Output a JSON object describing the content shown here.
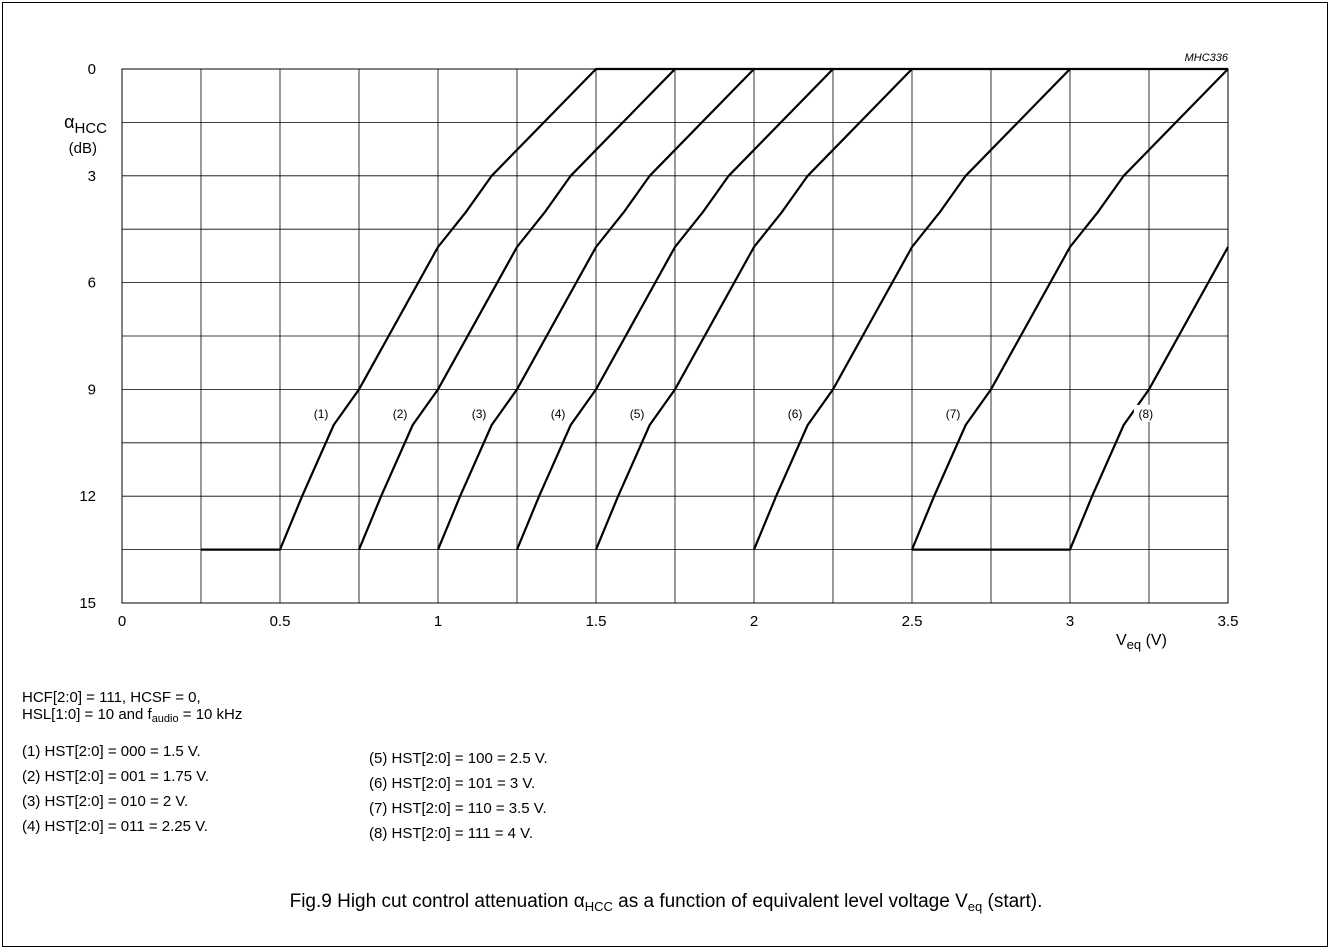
{
  "chart_data": {
    "type": "line",
    "figure_code": "MHC336",
    "ylabel_symbol": "α",
    "ylabel_subscript": "HCC",
    "ylabel_unit": "(dB)",
    "xlabel_main": "V",
    "xlabel_subscript": "eq",
    "xlabel_unit": "(V)",
    "xlim": [
      0,
      3.5
    ],
    "ylim": [
      0,
      15
    ],
    "y_inverted": true,
    "grid": true,
    "x_ticks": [
      0,
      0.5,
      1,
      1.5,
      2,
      2.5,
      3,
      3.5
    ],
    "x_tick_labels": [
      "0",
      "0.5",
      "1",
      "1.5",
      "2",
      "2.5",
      "3",
      "3.5"
    ],
    "y_ticks": [
      0,
      3,
      6,
      9,
      12,
      15
    ],
    "y_tick_labels": [
      "0",
      "3",
      "6",
      "9",
      "12",
      "15"
    ],
    "series": [
      {
        "name": "(1)",
        "label_at": [
          0.63,
          9.8
        ],
        "x": [
          0.25,
          0.5,
          0.57,
          0.67,
          0.75,
          1.0,
          1.09,
          1.17,
          1.5,
          1.75,
          3.5
        ],
        "y": [
          13.5,
          13.5,
          12.0,
          10.0,
          9.0,
          5.0,
          4.0,
          3.0,
          0.0,
          0.0,
          0.0
        ]
      },
      {
        "name": "(2)",
        "label_at": [
          0.88,
          9.8
        ],
        "x": [
          0.75,
          0.82,
          0.92,
          1.0,
          1.25,
          1.34,
          1.42,
          1.75
        ],
        "y": [
          13.5,
          12.0,
          10.0,
          9.0,
          5.0,
          4.0,
          3.0,
          0.0
        ]
      },
      {
        "name": "(3)",
        "label_at": [
          1.13,
          9.8
        ],
        "x": [
          1.0,
          1.07,
          1.17,
          1.25,
          1.5,
          1.59,
          1.67,
          2.0
        ],
        "y": [
          13.5,
          12.0,
          10.0,
          9.0,
          5.0,
          4.0,
          3.0,
          0.0
        ]
      },
      {
        "name": "(4)",
        "label_at": [
          1.38,
          9.8
        ],
        "x": [
          1.25,
          1.32,
          1.42,
          1.5,
          1.75,
          1.84,
          1.92,
          2.25
        ],
        "y": [
          13.5,
          12.0,
          10.0,
          9.0,
          5.0,
          4.0,
          3.0,
          0.0
        ]
      },
      {
        "name": "(5)",
        "label_at": [
          1.63,
          9.8
        ],
        "x": [
          1.5,
          1.57,
          1.67,
          1.75,
          2.0,
          2.09,
          2.17,
          2.5
        ],
        "y": [
          13.5,
          12.0,
          10.0,
          9.0,
          5.0,
          4.0,
          3.0,
          0.0
        ]
      },
      {
        "name": "(6)",
        "label_at": [
          2.13,
          9.8
        ],
        "x": [
          2.0,
          2.07,
          2.17,
          2.25,
          2.5,
          2.59,
          2.67,
          3.0
        ],
        "y": [
          13.5,
          12.0,
          10.0,
          9.0,
          5.0,
          4.0,
          3.0,
          0.0
        ]
      },
      {
        "name": "(7)",
        "label_at": [
          2.63,
          9.8
        ],
        "x": [
          2.5,
          2.57,
          2.67,
          2.75,
          3.0,
          3.09,
          3.17,
          3.5
        ],
        "y": [
          13.5,
          12.0,
          10.0,
          9.0,
          5.0,
          4.0,
          3.0,
          0.0
        ]
      },
      {
        "name": "(8)",
        "label_at": [
          3.24,
          9.8
        ],
        "x": [
          2.5,
          3.0,
          3.07,
          3.17,
          3.25,
          3.5
        ],
        "y": [
          13.5,
          13.5,
          12.0,
          10.0,
          9.0,
          5.0
        ]
      }
    ]
  },
  "conditions": {
    "line1": "HCF[2:0] = 111, HCSF = 0,",
    "line2_prefix": "HSL[1:0] = 10 and f",
    "line2_sub": "audio",
    "line2_suffix": " = 10 kHz"
  },
  "legend_left": [
    "(1)  HST[2:0] = 000 = 1.5 V.",
    "(2)  HST[2:0] = 001 = 1.75 V.",
    "(3)  HST[2:0] = 010 = 2 V.",
    "(4)  HST[2:0] = 011 = 2.25 V."
  ],
  "legend_right": [
    "(5)  HST[2:0] = 100 = 2.5 V.",
    "(6)  HST[2:0] = 101 = 3 V.",
    "(7)  HST[2:0] = 110 = 3.5 V.",
    "(8)  HST[2:0] = 111 = 4 V."
  ],
  "caption": {
    "prefix": "Fig.9  High cut control attenuation α",
    "sub1": "HCC",
    "middle": " as a function of equivalent level voltage V",
    "sub2": "eq",
    "suffix": " (start)."
  }
}
